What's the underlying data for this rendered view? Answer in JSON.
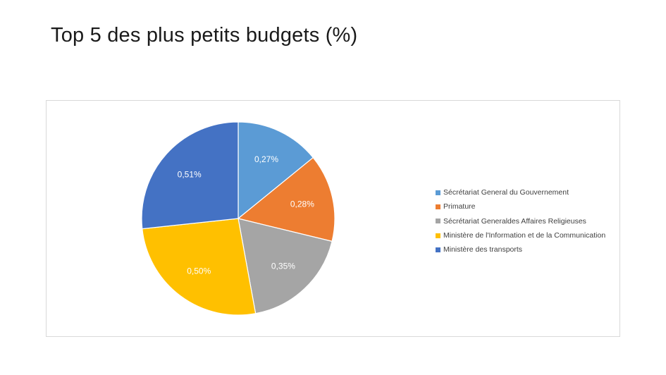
{
  "slide": {
    "title": "Top 5 des plus petits budgets (%)"
  },
  "chart_data": {
    "type": "pie",
    "title": "",
    "categories": [
      "Sécrétariat General du Gouvernement",
      "Primature",
      "Sécrétariat Generaldes Affaires Religieuses",
      "Ministère de l'Information et de la Communication",
      "Ministère des transports"
    ],
    "values": [
      0.27,
      0.28,
      0.35,
      0.5,
      0.51
    ],
    "data_labels": [
      "0,27%",
      "0,28%",
      "0,35%",
      "0,50%",
      "0,51%"
    ],
    "colors": [
      "#5b9bd5",
      "#ed7d31",
      "#a5a5a5",
      "#ffc000",
      "#4472c4"
    ],
    "legend_position": "right",
    "start_angle": "12 o'clock",
    "direction": "clockwise"
  }
}
